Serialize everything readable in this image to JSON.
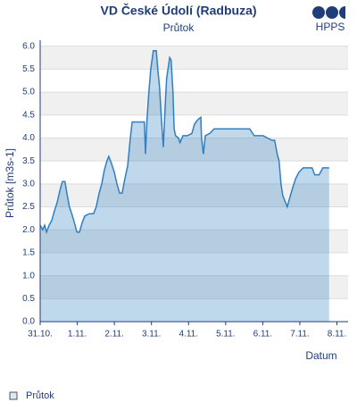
{
  "chart_data": {
    "type": "area",
    "title": "VD České Údolí (Radbuza)",
    "subtitle": "Průtok",
    "logo": "HPPS",
    "y_label": "Průtok [m3s-1]",
    "x_label": "Datum",
    "legend_position": "bottom-left",
    "grid": true,
    "xlim": [
      0,
      8.3
    ],
    "ylim": [
      0,
      6.13
    ],
    "xticks": [
      {
        "value": 0,
        "label": "31.10."
      },
      {
        "value": 1,
        "label": "1.11."
      },
      {
        "value": 2,
        "label": "2.11."
      },
      {
        "value": 3,
        "label": "3.11."
      },
      {
        "value": 4,
        "label": "4.11."
      },
      {
        "value": 5,
        "label": "5.11."
      },
      {
        "value": 6,
        "label": "6.11."
      },
      {
        "value": 7,
        "label": "7.11."
      },
      {
        "value": 8,
        "label": "8.11."
      }
    ],
    "yticks": [
      {
        "value": 0,
        "label": "0.0"
      },
      0.5,
      {
        "value": 1,
        "label": "1.0"
      },
      1.5,
      {
        "value": 2,
        "label": "2.0"
      },
      2.5,
      {
        "value": 3,
        "label": "3.0"
      },
      3.5,
      {
        "value": 4,
        "label": "4.0"
      },
      4.5,
      {
        "value": 5,
        "label": "5.0"
      },
      5.5,
      {
        "value": 6,
        "label": "6.0"
      }
    ],
    "series": [
      {
        "name": "Průtok",
        "color": "#2f7fc1",
        "x": [
          0,
          0.07,
          0.12,
          0.17,
          0.24,
          0.31,
          0.38,
          0.46,
          0.53,
          0.6,
          0.67,
          0.72,
          0.79,
          0.87,
          0.94,
          0.99,
          1.06,
          1.13,
          1.2,
          1.32,
          1.44,
          1.51,
          1.59,
          1.66,
          1.73,
          1.8,
          1.85,
          1.92,
          2.0,
          2.07,
          2.14,
          2.21,
          2.28,
          2.36,
          2.43,
          2.48,
          2.57,
          2.72,
          2.81,
          2.84,
          2.88,
          2.93,
          2.98,
          3.05,
          3.13,
          3.17,
          3.22,
          3.27,
          3.32,
          3.37,
          3.41,
          3.49,
          3.53,
          3.58,
          3.61,
          3.65,
          3.73,
          3.77,
          3.85,
          3.97,
          4.09,
          4.16,
          4.25,
          4.33,
          4.35,
          4.4,
          4.45,
          4.57,
          4.69,
          4.93,
          5.17,
          5.41,
          5.65,
          5.77,
          5.89,
          6.01,
          6.13,
          6.25,
          6.32,
          6.39,
          6.44,
          6.49,
          6.54,
          6.61,
          6.66,
          6.73,
          6.8,
          6.88,
          6.97,
          7.09,
          7.33,
          7.4,
          7.52,
          7.62,
          7.79
        ],
        "values": [
          2.1,
          2.0,
          2.1,
          1.95,
          2.1,
          2.2,
          2.4,
          2.6,
          2.85,
          3.05,
          3.05,
          2.8,
          2.5,
          2.3,
          2.1,
          1.95,
          1.95,
          2.15,
          2.3,
          2.35,
          2.35,
          2.5,
          2.8,
          3.0,
          3.3,
          3.5,
          3.6,
          3.45,
          3.25,
          3.0,
          2.8,
          2.8,
          3.1,
          3.4,
          4.0,
          4.35,
          4.35,
          4.35,
          4.35,
          3.65,
          4.4,
          5.0,
          5.5,
          5.9,
          5.9,
          5.5,
          5.1,
          4.4,
          3.8,
          4.7,
          5.3,
          5.75,
          5.7,
          5.0,
          4.2,
          4.05,
          4.0,
          3.9,
          4.05,
          4.05,
          4.1,
          4.3,
          4.4,
          4.45,
          4.0,
          3.65,
          4.05,
          4.1,
          4.2,
          4.2,
          4.2,
          4.2,
          4.2,
          4.05,
          4.05,
          4.05,
          4.0,
          3.95,
          3.95,
          3.65,
          3.5,
          3.0,
          2.75,
          2.6,
          2.5,
          2.7,
          2.9,
          3.1,
          3.25,
          3.35,
          3.35,
          3.2,
          3.2,
          3.35,
          3.35
        ]
      }
    ]
  }
}
